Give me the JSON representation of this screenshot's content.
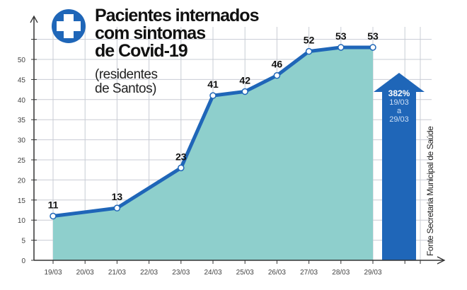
{
  "header": {
    "title_lines": [
      "Pacientes internados",
      "com sintomas",
      "de Covid-19"
    ],
    "subtitle_lines": [
      "(residentes",
      "de Santos)"
    ],
    "icon": "plus-circle-icon"
  },
  "source": "Fonte Secretaria Municipal de Saúde",
  "highlight": {
    "value": "382%",
    "from": "19/03",
    "connector": "a",
    "to": "29/03",
    "color": "#1f66b8"
  },
  "colors": {
    "line": "#1f66b8",
    "fill": "#8ecfcc",
    "grid": "#c8ccd4"
  },
  "chart_data": {
    "type": "area",
    "title": "Pacientes internados com sintomas de Covid-19 (residentes de Santos)",
    "categories": [
      "19/03",
      "20/03",
      "21/03",
      "22/03",
      "23/03",
      "24/03",
      "25/03",
      "26/03",
      "27/03",
      "28/03",
      "29/03"
    ],
    "points": [
      {
        "x": "19/03",
        "y": 11
      },
      {
        "x": "21/03",
        "y": 13
      },
      {
        "x": "23/03",
        "y": 23
      },
      {
        "x": "24/03",
        "y": 41
      },
      {
        "x": "25/03",
        "y": 42
      },
      {
        "x": "26/03",
        "y": 46
      },
      {
        "x": "27/03",
        "y": 52
      },
      {
        "x": "28/03",
        "y": 53
      },
      {
        "x": "29/03",
        "y": 53
      }
    ],
    "yticks": [
      0,
      5,
      10,
      15,
      20,
      25,
      30,
      35,
      40,
      45,
      50
    ],
    "ylim": [
      0,
      55
    ],
    "grid": true,
    "xlabel": "",
    "ylabel": ""
  }
}
